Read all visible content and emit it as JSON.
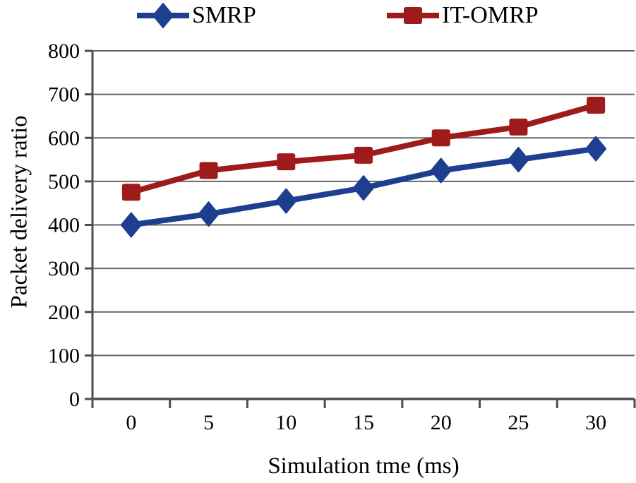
{
  "chart_data": {
    "type": "line",
    "title": "",
    "xlabel": "Simulation tme (ms)",
    "ylabel": "Packet delivery ratio",
    "categories": [
      "0",
      "5",
      "10",
      "15",
      "20",
      "25",
      "30"
    ],
    "series": [
      {
        "name": "SMRP",
        "color": "#1E3E90",
        "marker": "diamond",
        "values": [
          400,
          425,
          455,
          485,
          525,
          550,
          575
        ]
      },
      {
        "name": "IT-OMRP",
        "color": "#9E1B1B",
        "marker": "square",
        "values": [
          475,
          525,
          545,
          560,
          600,
          625,
          675
        ]
      }
    ],
    "ylim": [
      0,
      800
    ],
    "ytick_step": 100,
    "grid": "horizontal",
    "legend_position": "top",
    "grid_color": "#666666",
    "axis_color": "#4D4D4D",
    "text_color": "#000000"
  }
}
